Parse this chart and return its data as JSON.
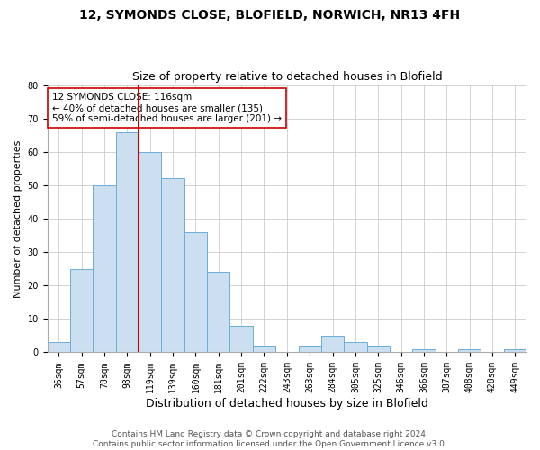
{
  "title_line1": "12, SYMONDS CLOSE, BLOFIELD, NORWICH, NR13 4FH",
  "title_line2": "Size of property relative to detached houses in Blofield",
  "xlabel": "Distribution of detached houses by size in Blofield",
  "ylabel": "Number of detached properties",
  "bar_color": "#ccdff0",
  "bar_edge_color": "#6aaed6",
  "categories": [
    "36sqm",
    "57sqm",
    "78sqm",
    "98sqm",
    "119sqm",
    "139sqm",
    "160sqm",
    "181sqm",
    "201sqm",
    "222sqm",
    "243sqm",
    "263sqm",
    "284sqm",
    "305sqm",
    "325sqm",
    "346sqm",
    "366sqm",
    "387sqm",
    "408sqm",
    "428sqm",
    "449sqm"
  ],
  "values": [
    3,
    25,
    50,
    66,
    60,
    52,
    36,
    24,
    8,
    2,
    0,
    2,
    5,
    3,
    2,
    0,
    1,
    0,
    1,
    0,
    1
  ],
  "vline_color": "#cc0000",
  "vline_x_index": 3.5,
  "annotation_text": "12 SYMONDS CLOSE: 116sqm\n← 40% of detached houses are smaller (135)\n59% of semi-detached houses are larger (201) →",
  "annotation_box_color": "#ffffff",
  "annotation_box_edge_color": "#cc0000",
  "ylim": [
    0,
    80
  ],
  "yticks": [
    0,
    10,
    20,
    30,
    40,
    50,
    60,
    70,
    80
  ],
  "grid_color": "#cccccc",
  "background_color": "#ffffff",
  "footer_line1": "Contains HM Land Registry data © Crown copyright and database right 2024.",
  "footer_line2": "Contains public sector information licensed under the Open Government Licence v3.0.",
  "title_fontsize": 10,
  "subtitle_fontsize": 9,
  "xlabel_fontsize": 9,
  "ylabel_fontsize": 8,
  "tick_fontsize": 7,
  "annotation_fontsize": 7.5,
  "footer_fontsize": 6.5
}
